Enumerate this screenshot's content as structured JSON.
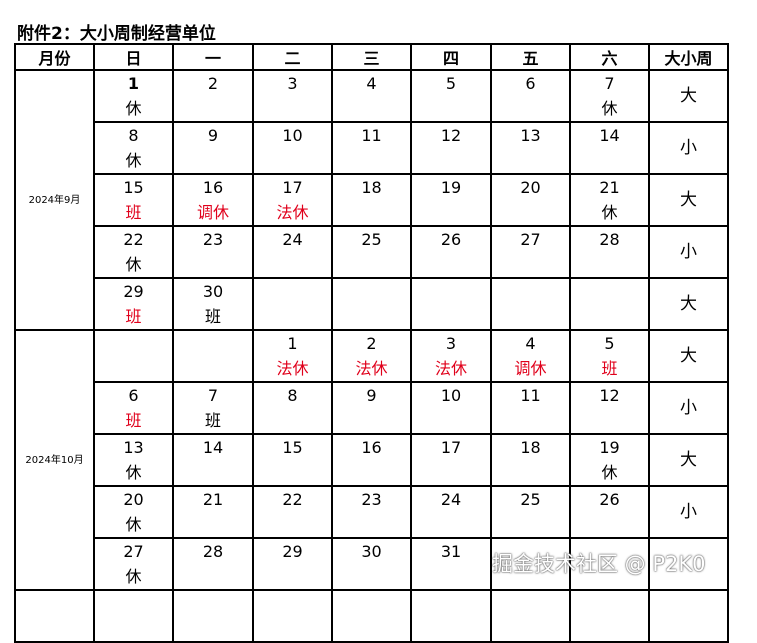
{
  "title": "附件2：大小周制经营单位",
  "headers": [
    "月份",
    "日",
    "一",
    "二",
    "三",
    "四",
    "五",
    "六",
    "大小周"
  ],
  "months": [
    {
      "label": "2024年9月",
      "weeks": [
        {
          "days": [
            {
              "d": "1",
              "n": "休",
              "red": false,
              "bold": true
            },
            {
              "d": "2"
            },
            {
              "d": "3"
            },
            {
              "d": "4"
            },
            {
              "d": "5"
            },
            {
              "d": "6"
            },
            {
              "d": "7",
              "n": "休"
            }
          ],
          "size": "大"
        },
        {
          "days": [
            {
              "d": "8",
              "n": "休"
            },
            {
              "d": "9"
            },
            {
              "d": "10"
            },
            {
              "d": "11"
            },
            {
              "d": "12"
            },
            {
              "d": "13"
            },
            {
              "d": "14"
            }
          ],
          "size": "小"
        },
        {
          "days": [
            {
              "d": "15",
              "n": "班",
              "red": true
            },
            {
              "d": "16",
              "n": "调休",
              "red": true
            },
            {
              "d": "17",
              "n": "法休",
              "red": true
            },
            {
              "d": "18"
            },
            {
              "d": "19"
            },
            {
              "d": "20"
            },
            {
              "d": "21",
              "n": "休"
            }
          ],
          "size": "大"
        },
        {
          "days": [
            {
              "d": "22",
              "n": "休"
            },
            {
              "d": "23"
            },
            {
              "d": "24"
            },
            {
              "d": "25"
            },
            {
              "d": "26"
            },
            {
              "d": "27"
            },
            {
              "d": "28"
            }
          ],
          "size": "小"
        },
        {
          "days": [
            {
              "d": "29",
              "n": "班",
              "red": true
            },
            {
              "d": "30",
              "n": "班"
            },
            {},
            {},
            {},
            {},
            {}
          ],
          "size": "大"
        }
      ]
    },
    {
      "label": "2024年10月",
      "weeks": [
        {
          "days": [
            {},
            {},
            {
              "d": "1",
              "n": "法休",
              "red": true
            },
            {
              "d": "2",
              "n": "法休",
              "red": true
            },
            {
              "d": "3",
              "n": "法休",
              "red": true
            },
            {
              "d": "4",
              "n": "调休",
              "red": true
            },
            {
              "d": "5",
              "n": "班",
              "red": true
            }
          ],
          "size": "大"
        },
        {
          "days": [
            {
              "d": "6",
              "n": "班",
              "red": true
            },
            {
              "d": "7",
              "n": "班"
            },
            {
              "d": "8"
            },
            {
              "d": "9"
            },
            {
              "d": "10"
            },
            {
              "d": "11"
            },
            {
              "d": "12"
            }
          ],
          "size": "小"
        },
        {
          "days": [
            {
              "d": "13",
              "n": "休"
            },
            {
              "d": "14"
            },
            {
              "d": "15"
            },
            {
              "d": "16"
            },
            {
              "d": "17"
            },
            {
              "d": "18"
            },
            {
              "d": "19",
              "n": "休"
            }
          ],
          "size": "大"
        },
        {
          "days": [
            {
              "d": "20",
              "n": "休"
            },
            {
              "d": "21"
            },
            {
              "d": "22"
            },
            {
              "d": "23"
            },
            {
              "d": "24"
            },
            {
              "d": "25"
            },
            {
              "d": "26"
            }
          ],
          "size": "小"
        },
        {
          "days": [
            {
              "d": "27",
              "n": "休"
            },
            {
              "d": "28"
            },
            {
              "d": "29"
            },
            {
              "d": "30"
            },
            {
              "d": "31"
            },
            {},
            {}
          ],
          "size": ""
        }
      ]
    }
  ],
  "watermark": "掘金技术社区 @ P2K0"
}
